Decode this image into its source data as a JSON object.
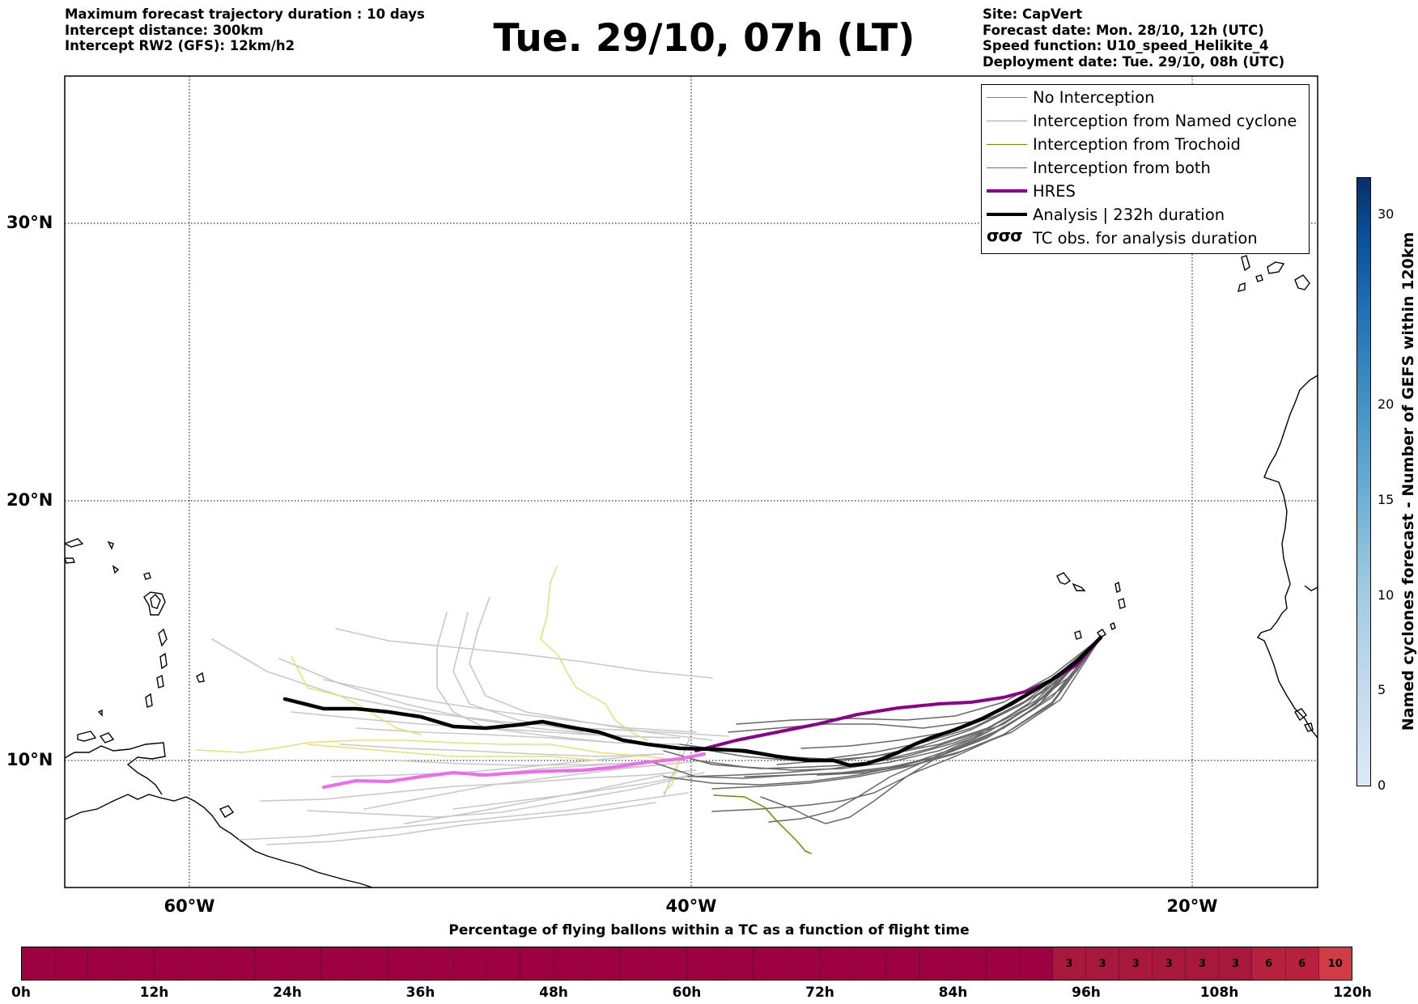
{
  "header": {
    "left_lines": [
      "Maximum forecast trajectory duration : 10 days",
      "Intercept distance: 300km",
      "Intercept RW2 (GFS):  12km/h2"
    ],
    "title": "Tue. 29/10, 07h (LT)",
    "right_lines": [
      "Site: CapVert",
      "Forecast date: Mon. 28/10, 12h (UTC)",
      "Speed function: U10_speed_Helikite_4",
      "Deployment date: Tue. 29/10, 08h (UTC)"
    ]
  },
  "map": {
    "lat_labels": [
      "30°N",
      "20°N",
      "10°N"
    ],
    "lon_labels": [
      "60°W",
      "40°W",
      "20°W"
    ],
    "lat_range": [
      5.4,
      34.7
    ],
    "lon_range": [
      -65,
      -15
    ]
  },
  "legend": {
    "items": [
      {
        "label": "No Interception",
        "color": "#808080",
        "style": "thin"
      },
      {
        "label": "Interception from Named cyclone",
        "color": "#ff7f50",
        "style": "thin"
      },
      {
        "label": "Interception from Trochoid",
        "color": "#808000",
        "style": "thin"
      },
      {
        "label": "Interception from both",
        "color": "#2ca02c",
        "style": "thin"
      },
      {
        "label": "HRES",
        "color": "#8b008b",
        "style": "thick"
      },
      {
        "label": "Analysis | 232h duration",
        "color": "#000000",
        "style": "thick"
      },
      {
        "label": "TC obs. for analysis duration",
        "color": "#000000",
        "style": "symbol",
        "symbol": "σσσ"
      }
    ]
  },
  "colorbar_right": {
    "label": "Named cyclones forecast - Number of GEFS within 120km",
    "ticks": [
      "0",
      "5",
      "10",
      "15",
      "20",
      "30"
    ],
    "range": [
      0,
      32
    ]
  },
  "bottom_bar": {
    "caption": "Percentage of flying ballons within a TC as a function of flight time",
    "hour_labels": [
      "0h",
      "12h",
      "24h",
      "36h",
      "48h",
      "60h",
      "72h",
      "84h",
      "96h",
      "108h",
      "120h"
    ],
    "segment_values": [
      "",
      "",
      "",
      "",
      "",
      "",
      "",
      "",
      "",
      "",
      "",
      "",
      "",
      "",
      "",
      "",
      "",
      "",
      "",
      "",
      "",
      "",
      "",
      "",
      "",
      "",
      "",
      "",
      "",
      "",
      "",
      "3",
      "3",
      "3",
      "3",
      "3",
      "3",
      "6",
      "6",
      "10"
    ],
    "base_color": "#9e0142",
    "highlight_colors": {
      "3": "#a8173d",
      "6": "#b8203f",
      "10": "#d03b45"
    }
  }
}
